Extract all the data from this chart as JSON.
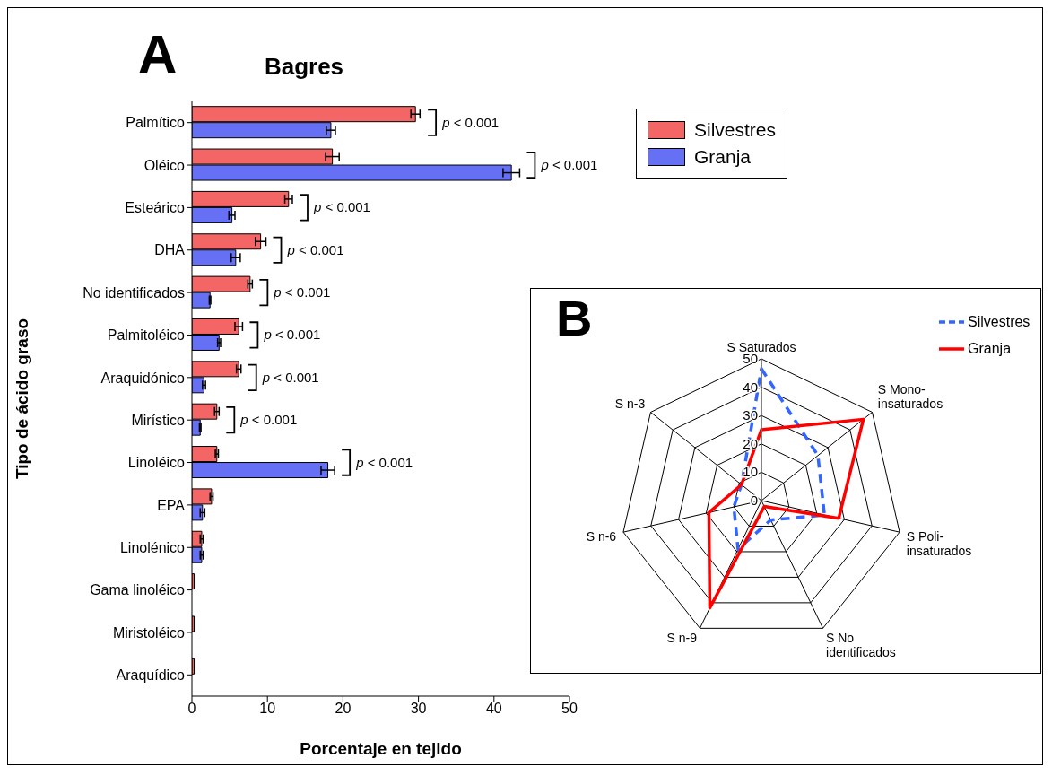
{
  "chart_data": [
    {
      "type": "bar",
      "orientation": "horizontal",
      "title": "Bagres",
      "xlabel": "Porcentaje en tejido",
      "ylabel": "Tipo de ácido graso",
      "categories": [
        "Palmítico",
        "Oléico",
        "Esteárico",
        "DHA",
        "No identificados",
        "Palmitoléico",
        "Araquidónico",
        "Mirístico",
        "Linoléico",
        "EPA",
        "Linolénico",
        "Gama linoléico",
        "Miristoléico",
        "Araquídico"
      ],
      "series": [
        {
          "name": "Silvestres",
          "color": "#f46566",
          "values": [
            29.6,
            18.6,
            12.8,
            9.1,
            7.7,
            6.2,
            6.2,
            3.3,
            3.3,
            2.6,
            1.3,
            0.3,
            0.3,
            0.3
          ],
          "errors": [
            0.6,
            0.9,
            0.5,
            0.7,
            0.3,
            0.5,
            0.3,
            0.3,
            0.2,
            0.2,
            0.2,
            null,
            null,
            null
          ]
        },
        {
          "name": "Granja",
          "color": "#6670f5",
          "values": [
            18.4,
            42.3,
            5.3,
            5.8,
            2.4,
            3.6,
            1.6,
            1.1,
            18.0,
            1.4,
            1.3,
            null,
            null,
            null
          ],
          "errors": [
            0.6,
            1.1,
            0.4,
            0.6,
            0.1,
            0.2,
            0.2,
            0.1,
            0.9,
            0.3,
            0.2,
            null,
            null,
            null
          ]
        }
      ],
      "xlim": [
        0,
        50
      ],
      "xticks": [
        0,
        10,
        20,
        30,
        40,
        50
      ],
      "legend": "top right",
      "annotations": [
        "A",
        {
          "text": "p < 0.001",
          "x": 30.3,
          "y": "Palmítico"
        },
        {
          "text": "p < 0.001",
          "x": 43.4,
          "y": "Oléico"
        },
        {
          "text": "p < 0.001",
          "x": 13.3,
          "y": "Esteárico"
        },
        {
          "text": "p < 0.001",
          "x": 9.8,
          "y": "DHA"
        },
        {
          "text": "p < 0.001",
          "x": 8.0,
          "y": "No identificados"
        },
        {
          "text": "p < 0.001",
          "x": 6.7,
          "y": "Palmitoléico"
        },
        {
          "text": "p < 0.001",
          "x": 6.5,
          "y": "Araquidónico"
        },
        {
          "text": "p < 0.001",
          "x": 3.6,
          "y": "Mirístico"
        },
        {
          "text": "p < 0.001",
          "x": 18.9,
          "y": "Linoléico"
        }
      ]
    },
    {
      "type": "radar",
      "categories": [
        "S Saturados",
        "S Mono-insaturados",
        "S Poli-insaturados",
        "S No identificados",
        "S n-9",
        "S n-6",
        "S n-3"
      ],
      "series": [
        {
          "name": "Silvestres",
          "color": "#3366ff",
          "line_style": "dashed",
          "values": [
            46.5,
            25.5,
            22.8,
            7.6,
            19,
            10,
            9
          ]
        },
        {
          "name": "Granja",
          "color": "#ff0000",
          "line_style": "solid",
          "values": [
            25,
            46,
            28,
            2.3,
            42,
            19,
            9
          ]
        }
      ],
      "ylim": [
        0,
        50
      ],
      "yticks": [
        0,
        10,
        20,
        30,
        40,
        50
      ],
      "grid": true,
      "legend": "top right",
      "annotations": [
        "B"
      ]
    }
  ]
}
